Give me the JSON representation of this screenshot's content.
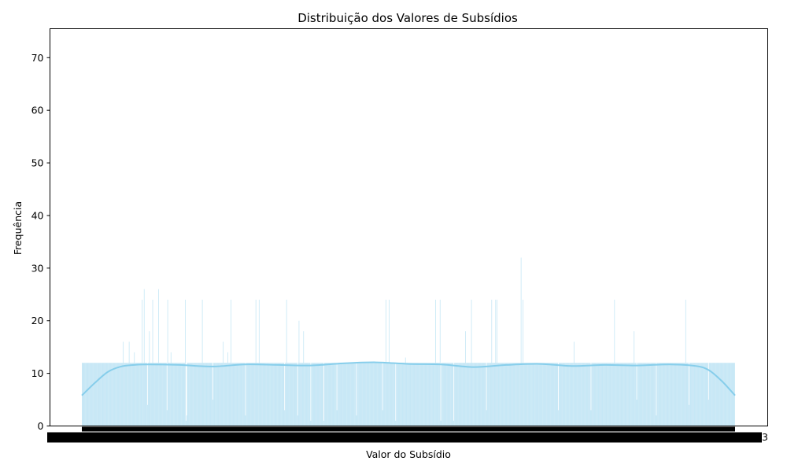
{
  "chart_data": {
    "type": "bar",
    "title": "Distribuição dos Valores de Subsídios",
    "xlabel": "Valor do Subsídio",
    "ylabel": "Frequência",
    "ylim": [
      0,
      75.5
    ],
    "yticks": [
      0,
      10,
      20,
      30,
      40,
      50,
      60,
      70
    ],
    "grid": false,
    "legend": "none",
    "bar_color": "#87ceeb",
    "kde_color": "#87ceeb",
    "x_category_count": 1000,
    "notes_visible": "x-axis tick labels overlap into an illegible black band; right end shows '3'",
    "x_tick_tail_text": "3",
    "baseline_frequency": 12,
    "categories_sample": [
      "a1",
      "a2",
      "a3"
    ],
    "spikes": [
      {
        "x_frac": 0.063,
        "value": 16
      },
      {
        "x_frac": 0.072,
        "value": 16
      },
      {
        "x_frac": 0.08,
        "value": 14
      },
      {
        "x_frac": 0.092,
        "value": 24
      },
      {
        "x_frac": 0.095,
        "value": 26
      },
      {
        "x_frac": 0.103,
        "value": 18
      },
      {
        "x_frac": 0.108,
        "value": 24
      },
      {
        "x_frac": 0.117,
        "value": 26
      },
      {
        "x_frac": 0.131,
        "value": 24
      },
      {
        "x_frac": 0.158,
        "value": 24
      },
      {
        "x_frac": 0.136,
        "value": 14
      },
      {
        "x_frac": 0.184,
        "value": 24
      },
      {
        "x_frac": 0.216,
        "value": 16
      },
      {
        "x_frac": 0.223,
        "value": 14
      },
      {
        "x_frac": 0.228,
        "value": 24
      },
      {
        "x_frac": 0.266,
        "value": 24
      },
      {
        "x_frac": 0.271,
        "value": 24
      },
      {
        "x_frac": 0.313,
        "value": 24
      },
      {
        "x_frac": 0.332,
        "value": 20
      },
      {
        "x_frac": 0.339,
        "value": 18
      },
      {
        "x_frac": 0.39,
        "value": 16
      },
      {
        "x_frac": 0.465,
        "value": 24
      },
      {
        "x_frac": 0.47,
        "value": 24
      },
      {
        "x_frac": 0.495,
        "value": 13
      },
      {
        "x_frac": 0.542,
        "value": 24
      },
      {
        "x_frac": 0.549,
        "value": 24
      },
      {
        "x_frac": 0.588,
        "value": 18
      },
      {
        "x_frac": 0.597,
        "value": 24
      },
      {
        "x_frac": 0.628,
        "value": 24
      },
      {
        "x_frac": 0.634,
        "value": 24
      },
      {
        "x_frac": 0.636,
        "value": 24
      },
      {
        "x_frac": 0.673,
        "value": 32
      },
      {
        "x_frac": 0.676,
        "value": 24
      },
      {
        "x_frac": 0.754,
        "value": 16
      },
      {
        "x_frac": 0.816,
        "value": 24
      },
      {
        "x_frac": 0.846,
        "value": 18
      },
      {
        "x_frac": 0.925,
        "value": 24
      }
    ],
    "dips": [
      {
        "x_frac": 0.1,
        "value": 4
      },
      {
        "x_frac": 0.13,
        "value": 3
      },
      {
        "x_frac": 0.16,
        "value": 2
      },
      {
        "x_frac": 0.159,
        "value": 1
      },
      {
        "x_frac": 0.2,
        "value": 5
      },
      {
        "x_frac": 0.25,
        "value": 2
      },
      {
        "x_frac": 0.31,
        "value": 3
      },
      {
        "x_frac": 0.33,
        "value": 2
      },
      {
        "x_frac": 0.35,
        "value": 1
      },
      {
        "x_frac": 0.37,
        "value": 1
      },
      {
        "x_frac": 0.39,
        "value": 3
      },
      {
        "x_frac": 0.42,
        "value": 2
      },
      {
        "x_frac": 0.46,
        "value": 3
      },
      {
        "x_frac": 0.48,
        "value": 1
      },
      {
        "x_frac": 0.55,
        "value": 1
      },
      {
        "x_frac": 0.57,
        "value": 3
      },
      {
        "x_frac": 0.57,
        "value": 1
      },
      {
        "x_frac": 0.62,
        "value": 3
      },
      {
        "x_frac": 0.73,
        "value": 3
      },
      {
        "x_frac": 0.78,
        "value": 3
      },
      {
        "x_frac": 0.85,
        "value": 5
      },
      {
        "x_frac": 0.88,
        "value": 2
      },
      {
        "x_frac": 0.93,
        "value": 4
      },
      {
        "x_frac": 0.96,
        "value": 5
      }
    ],
    "kde": {
      "x_frac": [
        0.0,
        0.02,
        0.04,
        0.06,
        0.08,
        0.1,
        0.15,
        0.2,
        0.25,
        0.3,
        0.35,
        0.4,
        0.45,
        0.5,
        0.55,
        0.6,
        0.65,
        0.7,
        0.75,
        0.8,
        0.85,
        0.9,
        0.94,
        0.96,
        0.98,
        1.0
      ],
      "values": [
        5.8,
        8.2,
        10.3,
        11.3,
        11.6,
        11.7,
        11.6,
        11.3,
        11.7,
        11.6,
        11.5,
        11.9,
        12.1,
        11.8,
        11.7,
        11.2,
        11.6,
        11.8,
        11.4,
        11.6,
        11.5,
        11.7,
        11.4,
        10.6,
        8.5,
        5.8
      ]
    }
  }
}
